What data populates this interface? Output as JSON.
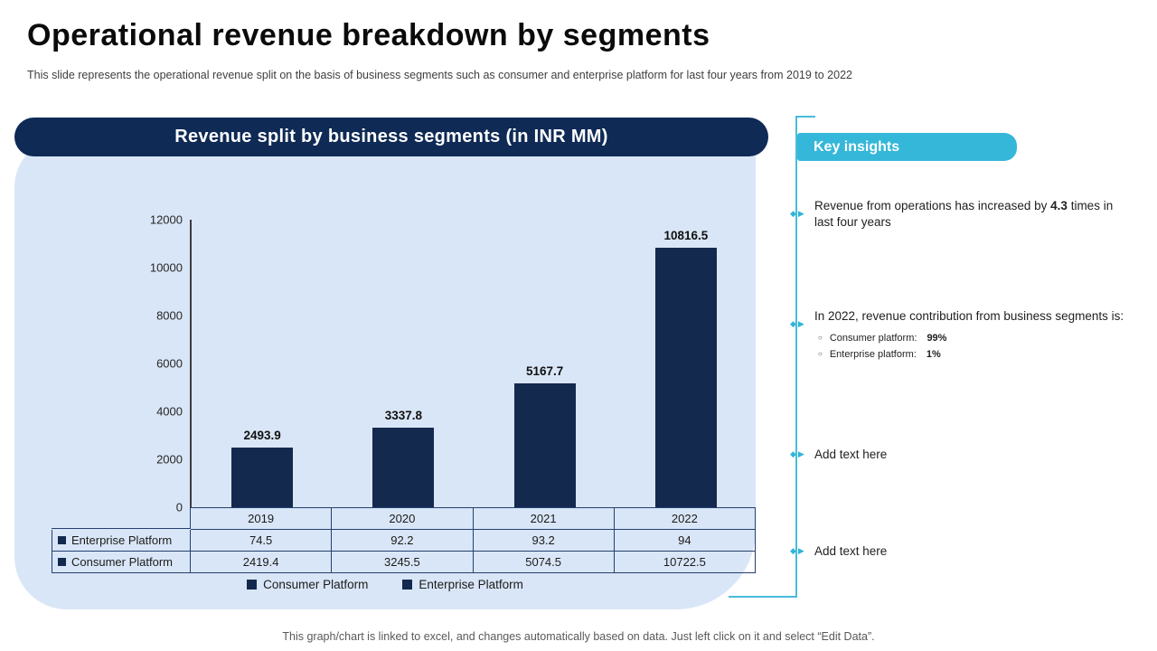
{
  "slide": {
    "title": "Operational revenue breakdown by segments",
    "subtitle": "This slide represents the operational revenue split on the basis of business segments such as consumer and enterprise platform for last four years from 2019 to 2022",
    "footer": "This graph/chart is linked to excel, and changes automatically based on data. Just left click on it and select “Edit Data”."
  },
  "panel": {
    "header": "Revenue split by business segments (in INR MM)"
  },
  "chart_data": {
    "type": "bar",
    "title": "Revenue split by business segments (in INR MM)",
    "categories": [
      "2019",
      "2020",
      "2021",
      "2022"
    ],
    "series": [
      {
        "name": "Consumer Platform",
        "values": [
          2419.4,
          3245.5,
          5074.5,
          10722.5
        ]
      },
      {
        "name": "Enterprise Platform",
        "values": [
          74.5,
          92.2,
          93.2,
          94
        ]
      }
    ],
    "totals": [
      2493.9,
      3337.8,
      5167.7,
      10816.5
    ],
    "total_labels": [
      "2493.9",
      "3337.8",
      "5167.7",
      "10816.5"
    ],
    "ylim": [
      0,
      12000
    ],
    "ytick_step": 2000,
    "grid": false,
    "legend": [
      "Consumer Platform",
      "Enterprise Platform"
    ],
    "legend_position": "bottom",
    "data_table_rows": [
      {
        "label": "Enterprise Platform",
        "values": [
          "74.5",
          "92.2",
          "93.2",
          "94"
        ]
      },
      {
        "label": "Consumer Platform",
        "values": [
          "2419.4",
          "3245.5",
          "5074.5",
          "10722.5"
        ]
      }
    ]
  },
  "insights": {
    "header": "Key insights",
    "items": [
      {
        "pre": "Revenue from operations has increased by ",
        "bold": "4.3",
        "post": " times in last four years"
      },
      {
        "pre": "In 2022, revenue contribution from business segments is:",
        "sub": [
          {
            "pre": "Consumer platform:",
            "bold": "99%"
          },
          {
            "pre": "Enterprise platform:",
            "bold": "1%"
          }
        ]
      },
      {
        "pre": "Add text here"
      },
      {
        "pre": "Add text here"
      }
    ]
  },
  "icons": {
    "insight_marker": "◆▶",
    "sub_bullet": "○"
  },
  "colors": {
    "navy": "#14294e",
    "cyan": "#35b7d9",
    "panel_bg": "#d9e6f7"
  }
}
